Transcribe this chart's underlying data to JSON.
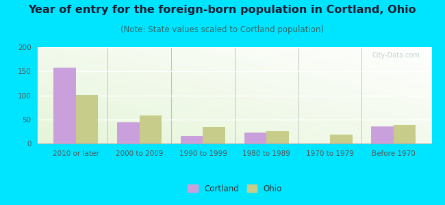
{
  "title": "Year of entry for the foreign-born population in Cortland, Ohio",
  "subtitle": "(Note: State values scaled to Cortland population)",
  "categories": [
    "2010 or later",
    "2000 to 2009",
    "1990 to 1999",
    "1980 to 1989",
    "1970 to 1979",
    "Before 1970"
  ],
  "cortland_values": [
    157,
    44,
    16,
    22,
    0,
    35
  ],
  "ohio_values": [
    101,
    58,
    34,
    25,
    19,
    39
  ],
  "cortland_color": "#c9a0dc",
  "ohio_color": "#c8cc8a",
  "background_outer": "#00e5ff",
  "ylim": [
    0,
    200
  ],
  "yticks": [
    0,
    50,
    100,
    150,
    200
  ],
  "bar_width": 0.35,
  "title_fontsize": 11.5,
  "subtitle_fontsize": 8.5,
  "tick_fontsize": 7.5,
  "legend_fontsize": 8.5,
  "title_color": "#1a1a2e",
  "subtitle_color": "#336666",
  "tick_color": "#555555"
}
